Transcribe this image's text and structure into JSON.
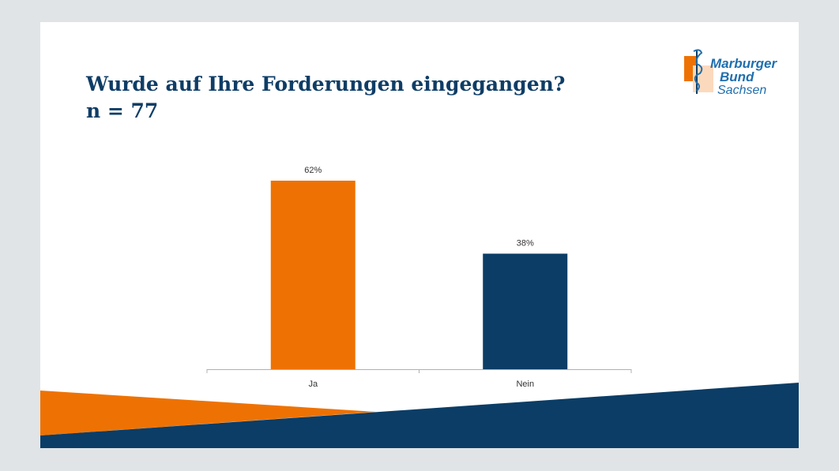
{
  "slide": {
    "title_line1": "Wurde auf Ihre Forderungen eingegangen?",
    "title_line2": "n = 77"
  },
  "logo": {
    "line1": "Marburger",
    "line2": "Bund",
    "line3": "Sachsen"
  },
  "colors": {
    "orange": "#ee7203",
    "navy": "#0b3d66",
    "title": "#0f3d66",
    "background": "#e1e4e7"
  },
  "chart_data": {
    "type": "bar",
    "categories": [
      "Ja",
      "Nein"
    ],
    "values": [
      62,
      38
    ],
    "value_labels": [
      "62%",
      "38%"
    ],
    "bar_colors": [
      "#ee7203",
      "#0b3d66"
    ],
    "ylim": [
      0,
      62
    ],
    "grid": false,
    "legend": "none"
  }
}
